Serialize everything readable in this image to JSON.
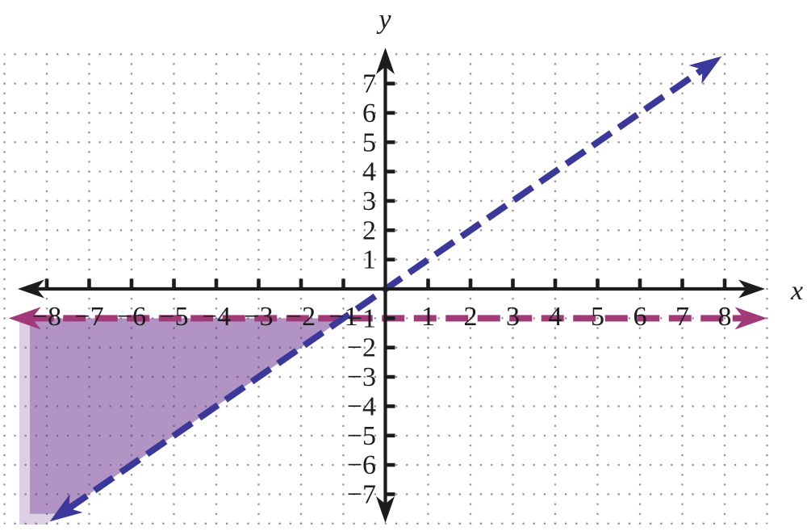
{
  "figure": {
    "description": "Coordinate plane showing the solution region of a system of linear inequalities with two dashed boundary lines"
  },
  "chart_data": {
    "type": "line",
    "title": "",
    "xlabel": "x",
    "ylabel": "y",
    "xlim": [
      -9,
      9
    ],
    "ylim": [
      -8,
      8
    ],
    "grid": "dotted",
    "grid_color": "#96969a",
    "axis_color": "#1c1c1c",
    "x_ticks": [
      -8,
      -7,
      -6,
      -5,
      -4,
      -3,
      -2,
      -1,
      1,
      2,
      3,
      4,
      5,
      6,
      7,
      8
    ],
    "x_tick_labels": [
      "−8",
      "−7",
      "−6",
      "−5",
      "−4",
      "−3",
      "−2",
      "−1",
      "1",
      "2",
      "3",
      "4",
      "5",
      "6",
      "7",
      "8"
    ],
    "y_ticks": [
      -7,
      -6,
      -5,
      -4,
      -3,
      -2,
      -1,
      1,
      2,
      3,
      4,
      5,
      6,
      7
    ],
    "y_tick_labels": [
      "−7",
      "−6",
      "−5",
      "−4",
      "−3",
      "−2",
      "−1",
      "1",
      "2",
      "3",
      "4",
      "5",
      "6",
      "7"
    ],
    "series": [
      {
        "name": "boundary-line-y-equals-x",
        "equation": "y = x",
        "style": "dashed",
        "color": "#3a389b",
        "arrows": "both",
        "x": [
          -7.93,
          7.93
        ],
        "y": [
          -7.93,
          7.93
        ]
      },
      {
        "name": "boundary-line-y-equals-minus-1",
        "equation": "y = −1",
        "style": "dashed",
        "color": "#a23a7a",
        "arrows": "both",
        "x": [
          -8.9,
          9.0
        ],
        "y": [
          -1,
          -1
        ]
      }
    ],
    "shaded_region": {
      "description": "shaded solution region: y < −1 and y > x (below horizontal dashed line, left of diagonal dashed line)",
      "fill_color": "#642a8a",
      "fill_opacity": 0.5,
      "edge_fade_opacity": 0.22,
      "vertices": [
        [
          -8.4,
          -1
        ],
        [
          -1,
          -1
        ],
        [
          -7.67,
          -7.67
        ],
        [
          -8.4,
          -7.67
        ]
      ]
    }
  }
}
